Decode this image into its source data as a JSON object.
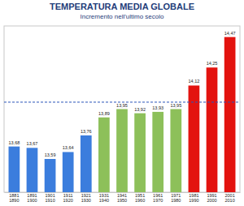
{
  "chart_data": {
    "type": "bar",
    "title": "TEMPERATURA MEDIA GLOBALE",
    "subtitle": "Incremento nell'ultimo secolo",
    "categories": [
      "1881\n1890",
      "1891\n1900",
      "1901\n1910",
      "1911\n1920",
      "1921\n1930",
      "1931\n1940",
      "1941\n1950",
      "1951\n1960",
      "1961\n1970",
      "1971\n1980",
      "1981\n1990",
      "1991\n2000",
      "2001\n2010"
    ],
    "values": [
      13.68,
      13.67,
      13.59,
      13.64,
      13.76,
      13.89,
      13.95,
      13.92,
      13.93,
      13.95,
      14.12,
      14.25,
      14.47
    ],
    "value_labels": [
      "13,68",
      "13,67",
      "13,59",
      "13,64",
      "13,76",
      "13,89",
      "13,95",
      "13,92",
      "13,93",
      "13,95",
      "14,12",
      "14,25",
      "14,47"
    ],
    "colors": [
      "#3b7ddd",
      "#3b7ddd",
      "#3b7ddd",
      "#3b7ddd",
      "#3b7ddd",
      "#8dc05a",
      "#8dc05a",
      "#8dc05a",
      "#8dc05a",
      "#8dc05a",
      "#e3130f",
      "#e3130f",
      "#e3130f"
    ],
    "reference_line": 14.0,
    "ylim": [
      13.35,
      14.55
    ],
    "grid": false,
    "data_labels": true,
    "tick_labels": "x"
  }
}
